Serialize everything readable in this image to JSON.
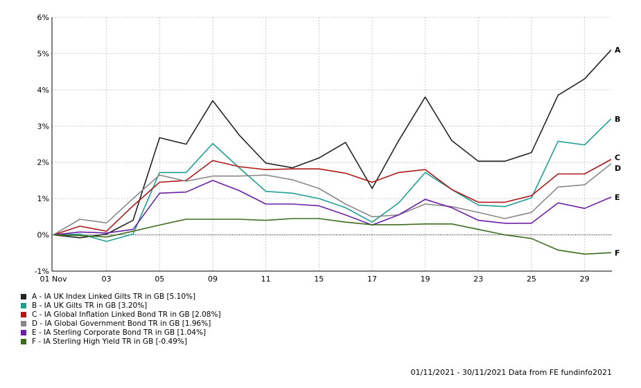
{
  "chart_data": {
    "type": "line",
    "title": "",
    "xlabel": "",
    "ylabel": "",
    "x_tick_labels": [
      "01 Nov",
      "03",
      "05",
      "09",
      "11",
      "15",
      "17",
      "19",
      "23",
      "25",
      "29"
    ],
    "y_tick_labels": [
      "-1%",
      "0%",
      "1%",
      "2%",
      "3%",
      "4%",
      "5%",
      "6%"
    ],
    "ylim": [
      -1,
      6
    ],
    "grid": true,
    "legend_position": "bottom-left",
    "series": [
      {
        "id": "A",
        "name": "A - IA UK Index Linked Gilts TR in GB [5.10%]",
        "color": "#222222",
        "values": [
          0,
          -0.08,
          0.02,
          0.4,
          2.68,
          2.5,
          3.7,
          2.75,
          1.98,
          1.85,
          2.12,
          2.55,
          1.28,
          2.6,
          3.8,
          2.6,
          2.03,
          2.03,
          2.27,
          3.85,
          4.3,
          5.1
        ]
      },
      {
        "id": "B",
        "name": "B - IA UK Gilts TR in GB [3.20%]",
        "color": "#1f9e94",
        "values": [
          0,
          0.02,
          -0.18,
          0.02,
          1.72,
          1.72,
          2.52,
          1.85,
          1.2,
          1.15,
          1.0,
          0.75,
          0.35,
          0.88,
          1.72,
          1.25,
          0.82,
          0.78,
          1.02,
          2.58,
          2.48,
          3.2
        ]
      },
      {
        "id": "C",
        "name": "C - IA Global Inflation Linked Bond TR in GB [2.08%]",
        "color": "#b01818",
        "values": [
          0,
          0.24,
          0.1,
          0.8,
          1.45,
          1.5,
          2.05,
          1.88,
          1.8,
          1.82,
          1.82,
          1.7,
          1.45,
          1.72,
          1.8,
          1.25,
          0.9,
          0.9,
          1.08,
          1.68,
          1.68,
          2.08
        ]
      },
      {
        "id": "D",
        "name": "D - IA Global Government Bond TR in GB [1.96%]",
        "color": "#888888",
        "values": [
          0,
          0.43,
          0.33,
          1.0,
          1.65,
          1.48,
          1.62,
          1.62,
          1.65,
          1.52,
          1.28,
          0.85,
          0.5,
          0.55,
          0.85,
          0.78,
          0.62,
          0.45,
          0.62,
          1.32,
          1.38,
          1.96
        ]
      },
      {
        "id": "E",
        "name": "E - IA Sterling Corporate Bond TR in GB [1.04%]",
        "color": "#6a1ea6",
        "values": [
          0,
          0.08,
          0.05,
          0.15,
          1.15,
          1.18,
          1.5,
          1.22,
          0.85,
          0.85,
          0.8,
          0.55,
          0.27,
          0.55,
          0.98,
          0.75,
          0.4,
          0.32,
          0.32,
          0.88,
          0.73,
          1.04
        ]
      },
      {
        "id": "F",
        "name": "F - IA Sterling High Yield TR in GB [-0.49%]",
        "color": "#3d6b1c",
        "values": [
          0,
          -0.02,
          -0.06,
          0.1,
          0.27,
          0.43,
          0.43,
          0.43,
          0.4,
          0.45,
          0.45,
          0.35,
          0.28,
          0.28,
          0.3,
          0.3,
          0.15,
          0.0,
          -0.1,
          -0.42,
          -0.53,
          -0.49
        ]
      }
    ]
  },
  "footer": {
    "date_source": "01/11/2021 - 30/11/2021 Data from FE fundinfo2021"
  }
}
